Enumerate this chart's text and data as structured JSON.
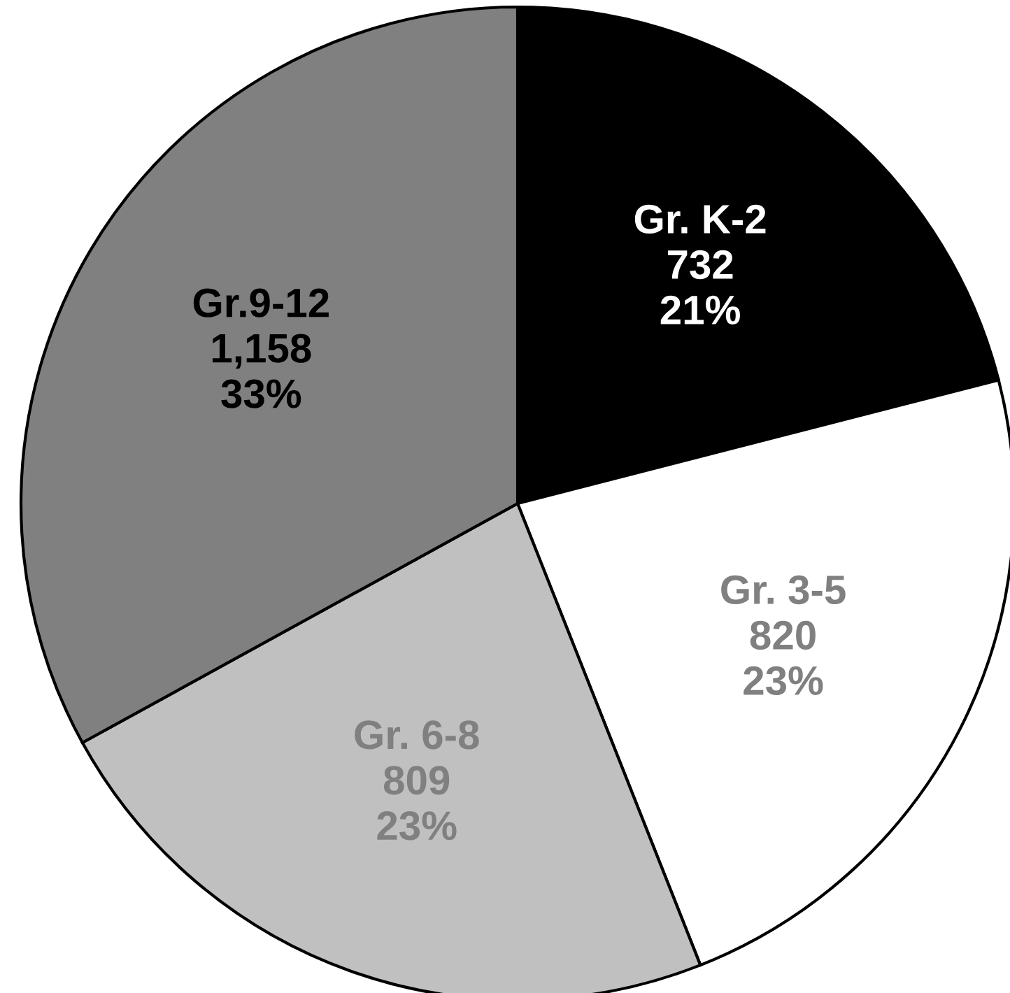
{
  "chart_data": {
    "type": "pie",
    "categories": [
      "Gr. K-2",
      "Gr. 3-5",
      "Gr. 6-8",
      "Gr.9-12"
    ],
    "values": [
      21,
      23,
      23,
      33
    ],
    "colors": [
      "#000000",
      "#ffffff",
      "#c0c0c0",
      "#808080"
    ],
    "value_labels": [
      "732\n21%",
      "820\n23%",
      "809\n23%",
      "1,158\n33%"
    ]
  }
}
